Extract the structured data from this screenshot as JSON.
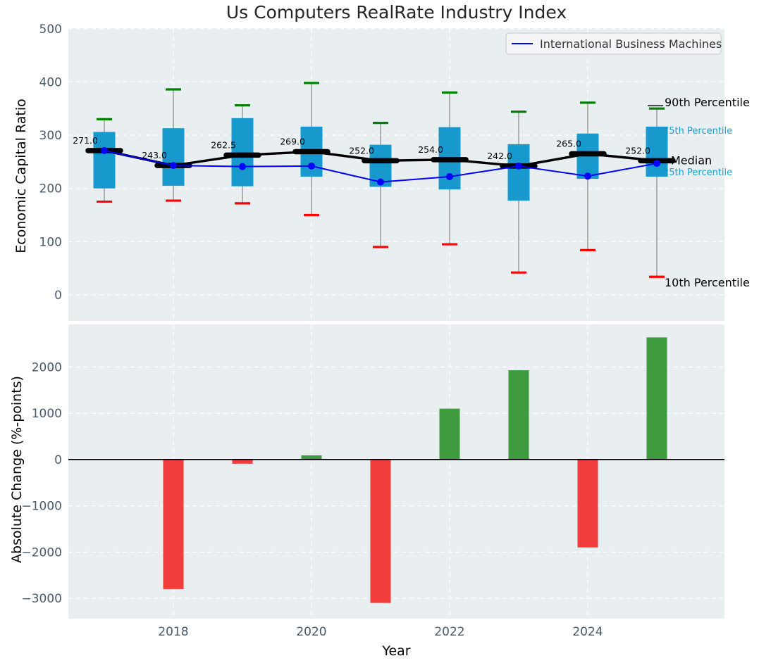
{
  "title": "Us Computers RealRate Industry Index",
  "colors": {
    "axes_background": "#E9EEF0",
    "grid": "#FFFFFF",
    "box_fill": "#1899CE",
    "whisker": "#888888",
    "cap_90th": "#008000",
    "cap_10th": "#FF0000",
    "median_line": "#000000",
    "company_line": "#0000FF",
    "bar_positive": "#3E9B3E",
    "bar_negative": "#F23D3D",
    "tick_text": "#47596B",
    "annotation_cyan": "#18A0D0",
    "text_dark": "#262626"
  },
  "chart_data": [
    {
      "type": "box",
      "panel": "top",
      "title": "Us Computers RealRate Industry Index",
      "ylabel": "Economic Capital Ratio",
      "ylim": [
        -49,
        501
      ],
      "yticks": [
        0,
        100,
        200,
        300,
        400,
        500
      ],
      "xticks_gridlines": [
        2018,
        2020,
        2022,
        2024
      ],
      "grid": true,
      "x": [
        2017,
        2018,
        2019,
        2020,
        2021,
        2022,
        2023,
        2024,
        2025
      ],
      "series": [
        {
          "role": "p90",
          "name": "90th Percentile",
          "values": [
            330,
            386,
            356,
            398,
            323,
            380,
            344,
            361,
            350
          ]
        },
        {
          "role": "p75",
          "name": "75th Percentile",
          "values": [
            306,
            313,
            332,
            316,
            282,
            315,
            283,
            303,
            316
          ]
        },
        {
          "role": "median",
          "name": "Median",
          "values": [
            271.0,
            243.0,
            262.5,
            269.0,
            252.0,
            254.0,
            242.0,
            265.0,
            252.0
          ]
        },
        {
          "role": "p25",
          "name": "25th Percentile",
          "values": [
            200,
            205,
            204,
            222,
            203,
            198,
            177,
            218,
            222
          ]
        },
        {
          "role": "p10",
          "name": "10th Percentile",
          "values": [
            175,
            177,
            172,
            150,
            90,
            95,
            42,
            84,
            34
          ]
        },
        {
          "role": "company",
          "name": "International Business Machines",
          "values": [
            271,
            243,
            241,
            242,
            212,
            222,
            242,
            223,
            247
          ]
        }
      ],
      "median_labels": [
        "271.0",
        "243.0",
        "262.5",
        "269.0",
        "252.0",
        "254.0",
        "242.0",
        "265.0",
        "252.0"
      ],
      "right_annotations": [
        "90th Percentile",
        "75th Percentile",
        "Median",
        "25th Percentile",
        "10th Percentile"
      ],
      "legend": {
        "label": "International Business Machines",
        "position": "upper right"
      }
    },
    {
      "type": "bar",
      "panel": "bottom",
      "ylabel": "Absolute Change (%-points)",
      "xlabel": "Year",
      "ylim": [
        -3440,
        2920
      ],
      "yticks": [
        -3000,
        -2000,
        -1000,
        0,
        1000,
        2000
      ],
      "xticks": [
        2018,
        2020,
        2022,
        2024
      ],
      "grid": true,
      "zero_line": true,
      "x": [
        2018,
        2019,
        2020,
        2021,
        2022,
        2023,
        2024,
        2025
      ],
      "values": [
        -2800,
        -90,
        90,
        -3100,
        1100,
        1930,
        -1900,
        2640
      ]
    }
  ]
}
